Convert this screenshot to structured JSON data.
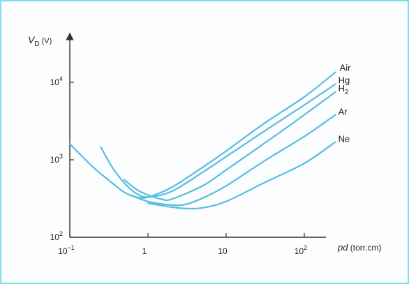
{
  "colors": {
    "curve": "#57bde0",
    "axis": "#333333",
    "frame": "#7fe0ec"
  },
  "chart_data": {
    "type": "line",
    "xscale": "log",
    "yscale": "log",
    "xlim": [
      0.1,
      300
    ],
    "ylim": [
      100,
      20000
    ],
    "xlabel": {
      "italic": "pd",
      "rest": " (torr.cm)"
    },
    "ylabel": {
      "italic": "V",
      "sub": "D",
      "rest": " (V)"
    },
    "xticks": [
      {
        "value": 0.1,
        "base": "10",
        "exp": "−1"
      },
      {
        "value": 1,
        "base": "1",
        "exp": ""
      },
      {
        "value": 10,
        "base": "10",
        "exp": ""
      },
      {
        "value": 100,
        "base": "10",
        "exp": "2"
      }
    ],
    "yticks": [
      {
        "value": 100,
        "base": "10",
        "exp": "2"
      },
      {
        "value": 1000,
        "base": "10",
        "exp": "3"
      },
      {
        "value": 10000,
        "base": "10",
        "exp": "4"
      }
    ],
    "series": [
      {
        "name": "Air",
        "sub": "",
        "x": [
          0.1,
          0.2,
          0.35,
          0.5,
          0.7,
          1,
          2,
          5,
          10,
          30,
          100,
          250
        ],
        "y": [
          1600,
          800,
          500,
          380,
          330,
          330,
          440,
          800,
          1300,
          2900,
          6500,
          13500
        ]
      },
      {
        "name": "Hg",
        "sub": "",
        "x": [
          0.25,
          0.35,
          0.5,
          0.7,
          1,
          2,
          5,
          10,
          30,
          100,
          250
        ],
        "y": [
          1450,
          800,
          500,
          370,
          330,
          390,
          690,
          1100,
          2300,
          5100,
          9500
        ]
      },
      {
        "name": "H",
        "sub": "2",
        "x": [
          0.5,
          0.7,
          1,
          1.5,
          2,
          5,
          10,
          30,
          100,
          250
        ],
        "y": [
          550,
          420,
          350,
          310,
          310,
          460,
          740,
          1600,
          3800,
          7500
        ]
      },
      {
        "name": "Ar",
        "sub": "",
        "x": [
          0.6,
          1,
          2,
          3,
          5,
          10,
          30,
          100,
          250
        ],
        "y": [
          350,
          290,
          260,
          265,
          320,
          460,
          950,
          2000,
          3800
        ]
      },
      {
        "name": "Ne",
        "sub": "",
        "x": [
          1,
          2,
          3,
          5,
          10,
          30,
          100,
          250
        ],
        "y": [
          275,
          245,
          235,
          240,
          290,
          500,
          900,
          1700
        ]
      }
    ]
  }
}
